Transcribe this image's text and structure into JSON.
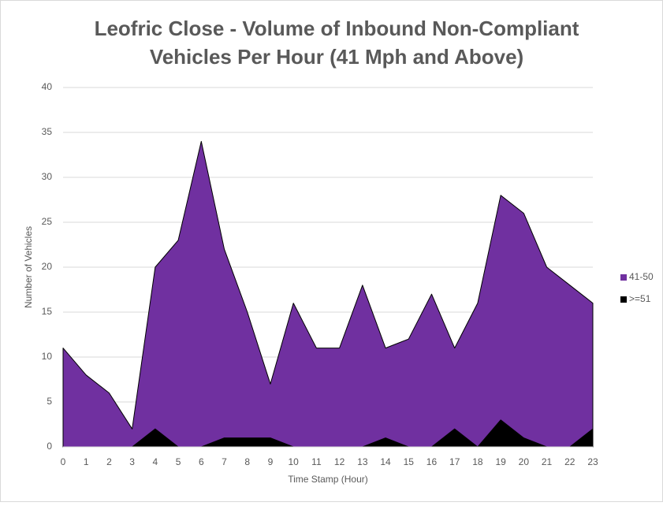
{
  "chart_data": {
    "type": "area",
    "title": [
      "Leofric Close - Volume of Inbound Non-Compliant",
      "Vehicles Per Hour (41 Mph and Above)"
    ],
    "x_label": "Time Stamp (Hour)",
    "y_label": "Number of Vehicles",
    "x": [
      0,
      1,
      2,
      3,
      4,
      5,
      6,
      7,
      8,
      9,
      10,
      11,
      12,
      13,
      14,
      15,
      16,
      17,
      18,
      19,
      20,
      21,
      22,
      23
    ],
    "xlim": [
      0,
      23
    ],
    "series": [
      {
        "name": "41-50",
        "color": "#7030a0",
        "values": [
          11,
          8,
          6,
          2,
          20,
          23,
          34,
          22,
          15,
          7,
          16,
          11,
          11,
          18,
          11,
          12,
          17,
          11,
          16,
          28,
          26,
          20,
          18,
          16
        ]
      },
      {
        "name": ">=51",
        "color": "#000000",
        "values": [
          0,
          0,
          0,
          0,
          2,
          0,
          0,
          1,
          1,
          1,
          0,
          0,
          0,
          0,
          1,
          0,
          0,
          2,
          0,
          3,
          1,
          0,
          0,
          2
        ]
      }
    ],
    "ylim": [
      0,
      40
    ],
    "yticks": [
      0,
      5,
      10,
      15,
      20,
      25,
      30,
      35,
      40
    ],
    "grid": true,
    "legend": "right"
  }
}
